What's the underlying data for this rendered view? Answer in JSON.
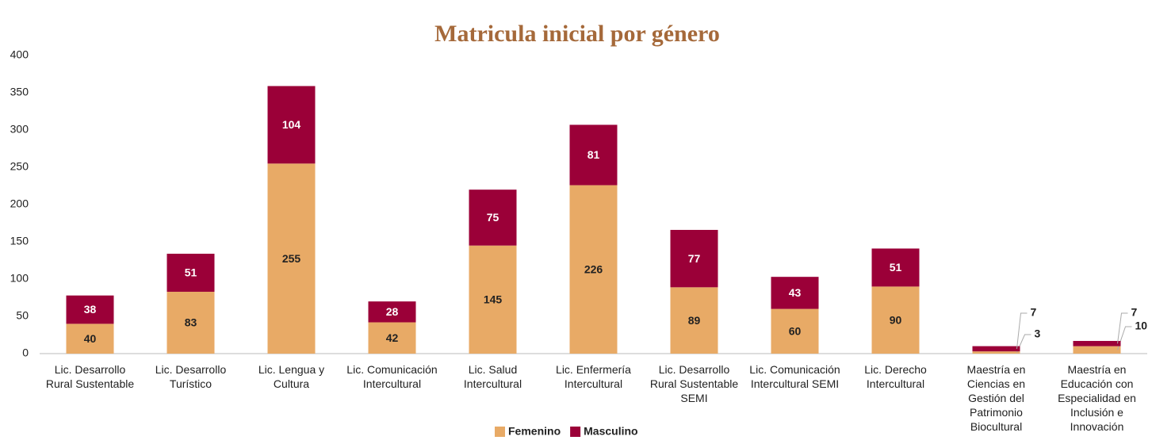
{
  "chart_data": {
    "type": "stacked_bar",
    "title": "Matricula inicial por género",
    "categories": [
      "Lic. Desarrollo Rural Sustentable",
      "Lic. Desarrollo Turístico",
      "Lic. Lengua y Cultura",
      "Lic. Comunicación Intercultural",
      "Lic. Salud Intercultural",
      "Lic. Enfermería Intercultural",
      "Lic. Desarrollo Rural Sustentable SEMI",
      "Lic. Comunicación Intercultural SEMI",
      "Lic. Derecho Intercultural",
      "Maestría en Ciencias en Gestión del Patrimonio Biocultural",
      "Maestría en Educación con Especialidad en Inclusión e Innovación"
    ],
    "series": [
      {
        "name": "Femenino",
        "color": "#e8aa66",
        "values": [
          40,
          83,
          255,
          42,
          145,
          226,
          89,
          60,
          90,
          3,
          10
        ]
      },
      {
        "name": "Masculino",
        "color": "#9b0038",
        "values": [
          38,
          51,
          104,
          28,
          75,
          81,
          77,
          43,
          51,
          7,
          7
        ]
      }
    ],
    "ylim": [
      0,
      400
    ],
    "yticks": [
      0,
      50,
      100,
      150,
      200,
      250,
      300,
      350,
      400
    ],
    "grid": false,
    "legend": "bottom"
  }
}
